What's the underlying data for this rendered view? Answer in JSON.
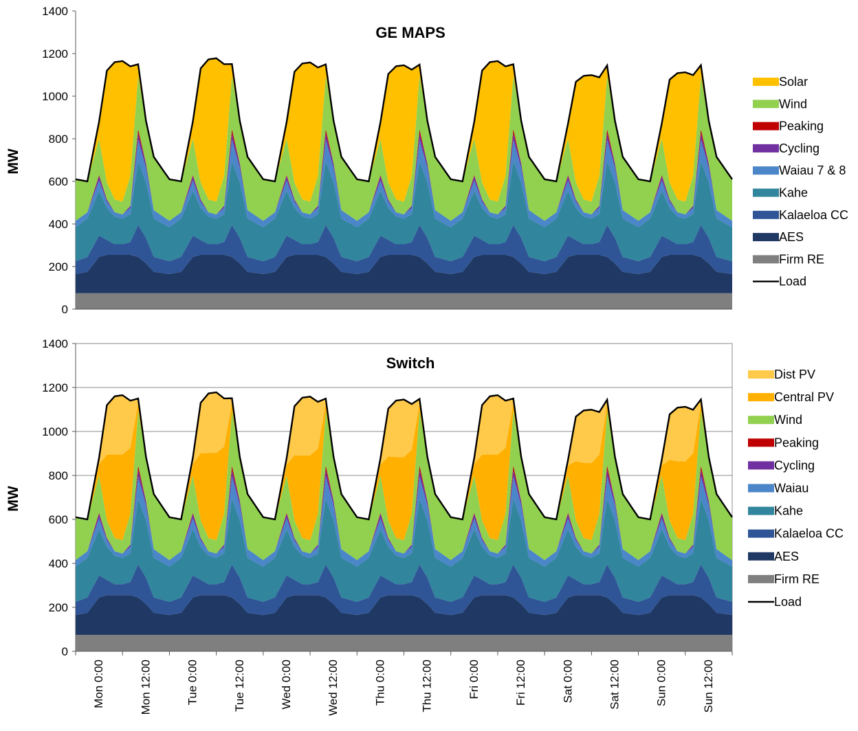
{
  "colors": {
    "Firm RE": "#7f7f7f",
    "AES": "#1f3864",
    "Kalaeloa CC": "#2f5597",
    "Kahe": "#31859c",
    "Waiau 7 & 8": "#4a86c8",
    "Waiau": "#4a86c8",
    "Cycling": "#7030a0",
    "Peaking": "#c00000",
    "Wind": "#92d050",
    "Solar": "#ffc000",
    "Central PV": "#ffb000",
    "Dist PV": "#ffc94a",
    "Load": "#000000"
  },
  "chart_data": [
    {
      "type": "area",
      "stacked": true,
      "title": "GE MAPS",
      "ylabel": "MW",
      "ylim": [
        0,
        1400
      ],
      "yticks": [
        0,
        200,
        400,
        600,
        800,
        1000,
        1200,
        1400
      ],
      "grid": false,
      "legend": "right",
      "x_hours": [
        0,
        3,
        6,
        8,
        10,
        12,
        14,
        16,
        18,
        20
      ],
      "series": [
        {
          "name": "Firm RE",
          "values": [
            75,
            75,
            75,
            75,
            75,
            75,
            75,
            75,
            75,
            75
          ]
        },
        {
          "name": "AES",
          "values": [
            90,
            100,
            170,
            180,
            180,
            180,
            180,
            170,
            140,
            100
          ]
        },
        {
          "name": "Kalaeloa CC",
          "values": [
            60,
            70,
            100,
            70,
            50,
            50,
            60,
            150,
            120,
            70
          ]
        },
        {
          "name": "Kahe",
          "values": [
            160,
            180,
            210,
            150,
            130,
            120,
            130,
            300,
            260,
            180
          ]
        },
        {
          "name": "Waiau 7 & 8",
          "values": [
            30,
            30,
            50,
            30,
            20,
            20,
            30,
            100,
            70,
            40
          ]
        },
        {
          "name": "Cycling",
          "values": [
            0,
            0,
            20,
            10,
            0,
            0,
            10,
            30,
            20,
            0
          ]
        },
        {
          "name": "Peaking",
          "values": [
            0,
            0,
            5,
            0,
            0,
            0,
            0,
            20,
            0,
            0
          ]
        },
        {
          "name": "Wind",
          "values": [
            195,
            145,
            170,
            80,
            60,
            60,
            140,
            250,
            200,
            250
          ]
        },
        {
          "name": "Solar",
          "values": [
            0,
            0,
            80,
            525,
            645,
            660,
            515,
            55,
            0,
            0
          ]
        }
      ],
      "days": [
        "Mon",
        "Tue",
        "Wed",
        "Thu",
        "Fri",
        "Sat",
        "Sun"
      ],
      "day_factor": [
        1.0,
        1.02,
        0.99,
        0.97,
        1.0,
        0.9,
        0.92
      ],
      "load_series": "Load"
    },
    {
      "type": "area",
      "stacked": true,
      "title": "Switch",
      "ylabel": "MW",
      "ylim": [
        0,
        1400
      ],
      "yticks": [
        0,
        200,
        400,
        600,
        800,
        1000,
        1200,
        1400
      ],
      "grid": true,
      "legend": "right",
      "xticks": [
        "Mon 0:00",
        "Mon 12:00",
        "Tue 0:00",
        "Tue 12:00",
        "Wed 0:00",
        "Wed 12:00",
        "Thu 0:00",
        "Thu 12:00",
        "Fri 0:00",
        "Fri 12:00",
        "Sat 0:00",
        "Sat 12:00",
        "Sun 0:00",
        "Sun 12:00"
      ],
      "x_hours": [
        0,
        3,
        6,
        8,
        10,
        12,
        14,
        16,
        18,
        20
      ],
      "series": [
        {
          "name": "Firm RE",
          "values": [
            75,
            75,
            75,
            75,
            75,
            75,
            75,
            75,
            75,
            75
          ]
        },
        {
          "name": "AES",
          "values": [
            90,
            100,
            170,
            180,
            180,
            180,
            180,
            170,
            140,
            100
          ]
        },
        {
          "name": "Kalaeloa CC",
          "values": [
            60,
            70,
            100,
            70,
            50,
            50,
            60,
            150,
            120,
            70
          ]
        },
        {
          "name": "Kahe",
          "values": [
            160,
            180,
            210,
            150,
            130,
            120,
            130,
            300,
            260,
            180
          ]
        },
        {
          "name": "Waiau",
          "values": [
            30,
            30,
            50,
            30,
            20,
            20,
            30,
            100,
            70,
            40
          ]
        },
        {
          "name": "Cycling",
          "values": [
            0,
            0,
            20,
            10,
            0,
            0,
            10,
            30,
            20,
            0
          ]
        },
        {
          "name": "Peaking",
          "values": [
            0,
            0,
            5,
            0,
            0,
            0,
            0,
            20,
            0,
            0
          ]
        },
        {
          "name": "Wind",
          "values": [
            195,
            145,
            170,
            80,
            60,
            60,
            140,
            250,
            200,
            250
          ]
        },
        {
          "name": "Central PV",
          "values": [
            0,
            0,
            50,
            300,
            380,
            390,
            300,
            35,
            0,
            0
          ]
        },
        {
          "name": "Dist PV",
          "values": [
            0,
            0,
            30,
            225,
            265,
            270,
            215,
            20,
            0,
            0
          ]
        }
      ],
      "days": [
        "Mon",
        "Tue",
        "Wed",
        "Thu",
        "Fri",
        "Sat",
        "Sun"
      ],
      "day_factor": [
        1.0,
        1.02,
        0.99,
        0.97,
        1.0,
        0.9,
        0.92
      ],
      "load_series": "Load"
    }
  ],
  "legends": [
    [
      "Solar",
      "Wind",
      "Peaking",
      "Cycling",
      "Waiau 7 & 8",
      "Kahe",
      "Kalaeloa CC",
      "AES",
      "Firm RE",
      "Load"
    ],
    [
      "Dist PV",
      "Central PV",
      "Wind",
      "Peaking",
      "Cycling",
      "Waiau",
      "Kahe",
      "Kalaeloa CC",
      "AES",
      "Firm RE",
      "Load"
    ]
  ]
}
